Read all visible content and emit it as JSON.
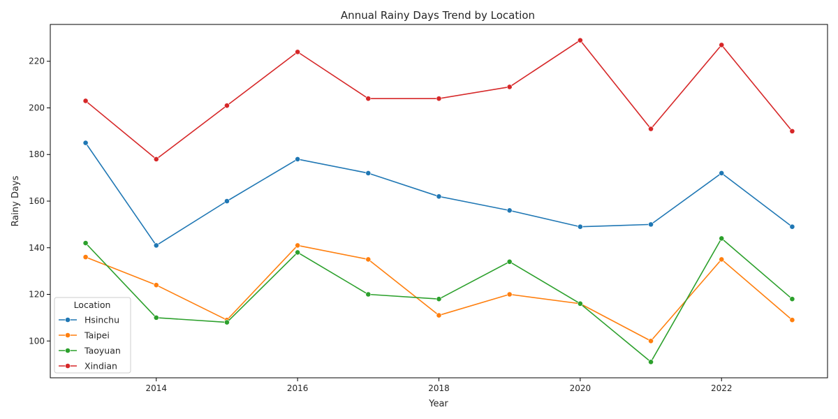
{
  "chart_data": {
    "type": "line",
    "title": "Annual Rainy Days Trend by Location",
    "xlabel": "Year",
    "ylabel": "Rainy Days",
    "x": [
      2013,
      2014,
      2015,
      2016,
      2017,
      2018,
      2019,
      2020,
      2021,
      2022,
      2023
    ],
    "xlim": [
      2012.5,
      2023.5
    ],
    "ylim": [
      84.2,
      235.8
    ],
    "xticks": [
      2014,
      2016,
      2018,
      2020,
      2022
    ],
    "yticks": [
      100,
      120,
      140,
      160,
      180,
      200,
      220
    ],
    "grid": false,
    "legend": {
      "title": "Location",
      "placement": "lower-left"
    },
    "series": [
      {
        "name": "Hsinchu",
        "color": "#1f77b4",
        "values": [
          185,
          141,
          160,
          178,
          172,
          162,
          156,
          149,
          150,
          172,
          149
        ]
      },
      {
        "name": "Taipei",
        "color": "#ff7f0e",
        "values": [
          136,
          124,
          109,
          141,
          135,
          111,
          120,
          116,
          100,
          135,
          109
        ]
      },
      {
        "name": "Taoyuan",
        "color": "#2ca02c",
        "values": [
          142,
          110,
          108,
          138,
          120,
          118,
          134,
          116,
          91,
          144,
          118
        ]
      },
      {
        "name": "Xindian",
        "color": "#d62728",
        "values": [
          203,
          178,
          201,
          224,
          204,
          204,
          209,
          229,
          191,
          227,
          190
        ]
      }
    ]
  }
}
